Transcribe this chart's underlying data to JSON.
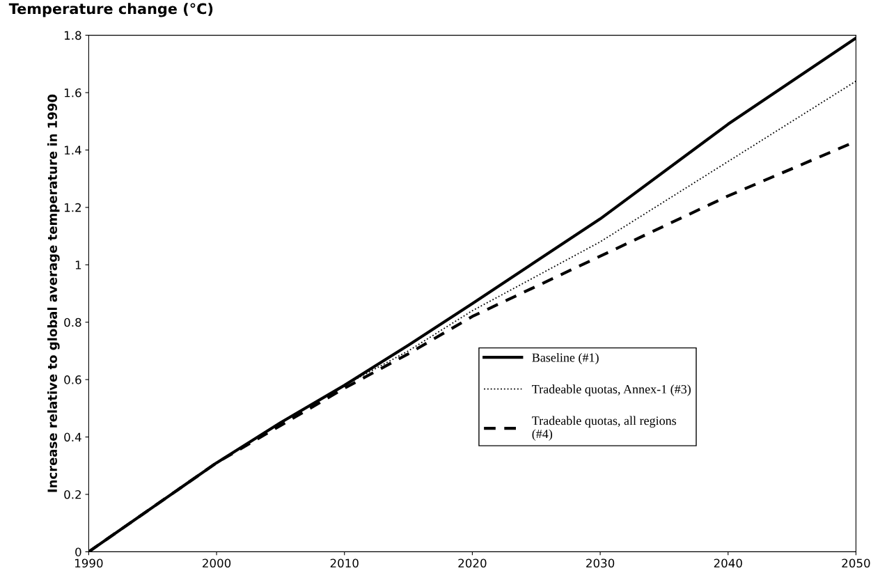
{
  "chart_data": {
    "type": "line",
    "title": "Temperature change (°C)",
    "ylabel": "Increase relative to global average temperature in 1990",
    "x": [
      1990,
      2000,
      2005,
      2010,
      2015,
      2020,
      2030,
      2040,
      2050
    ],
    "series": [
      {
        "name": "Baseline (#1)",
        "color": "#000000",
        "line_style": "solid",
        "values": [
          0,
          0.31,
          0.45,
          0.58,
          0.72,
          0.865,
          1.16,
          1.49,
          1.79
        ]
      },
      {
        "name": "Tradeable quotas, Annex-1 (#3)",
        "color": "#000000",
        "line_style": "dotted",
        "values": [
          0,
          0.31,
          0.45,
          0.58,
          0.7,
          0.84,
          1.08,
          1.36,
          1.64
        ]
      },
      {
        "name": "Tradeable quotas, all regions\n(#4)",
        "color": "#000000",
        "line_style": "dashed",
        "values": [
          0,
          0.31,
          0.44,
          0.57,
          0.69,
          0.82,
          1.03,
          1.24,
          1.43
        ]
      }
    ],
    "xlim": [
      1990,
      2050
    ],
    "xticks": [
      1990,
      2000,
      2010,
      2020,
      2030,
      2040,
      2050
    ],
    "ylim": [
      0,
      1.8
    ],
    "yticks": [
      0,
      0.2,
      0.4,
      0.6,
      0.8,
      1,
      1.2,
      1.4,
      1.6,
      1.8
    ],
    "grid": false,
    "legend": "right"
  }
}
